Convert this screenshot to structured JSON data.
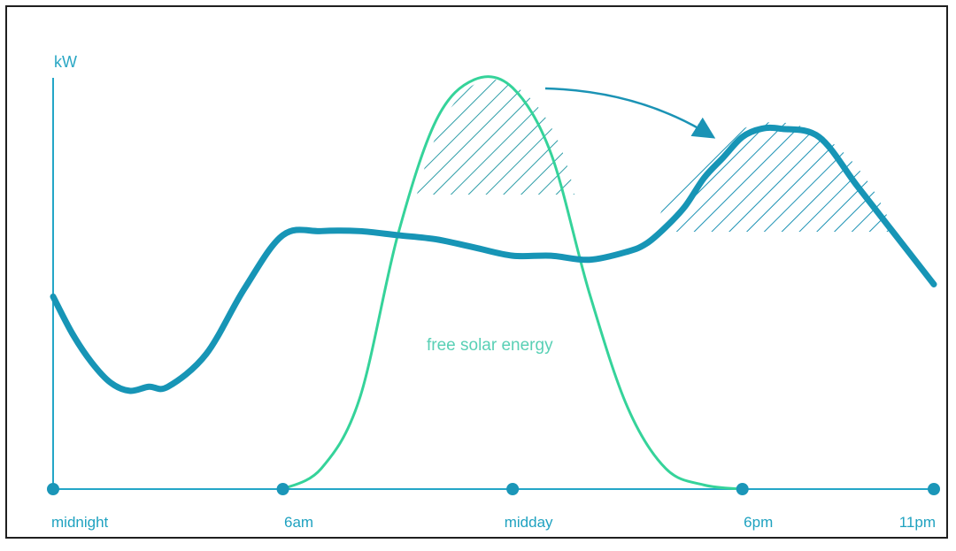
{
  "chart_data": {
    "type": "line",
    "ylabel": "kW",
    "categories": [
      "midnight",
      "6am",
      "midday",
      "6pm",
      "11pm"
    ],
    "annotations": [
      "free solar energy"
    ],
    "series": [
      {
        "color": "#1795b6",
        "x": [
          0,
          0.5,
          1,
          1.5,
          2,
          2.5,
          3,
          4,
          5,
          6,
          7,
          8,
          9,
          10,
          11,
          12,
          13,
          14,
          15,
          15.5,
          16,
          16.5,
          17,
          17.5,
          18,
          18.5,
          19,
          20,
          21,
          22,
          23
        ],
        "values": [
          0.47,
          0.38,
          0.31,
          0.26,
          0.24,
          0.25,
          0.25,
          0.33,
          0.49,
          0.62,
          0.63,
          0.63,
          0.62,
          0.61,
          0.59,
          0.57,
          0.57,
          0.56,
          0.58,
          0.6,
          0.64,
          0.69,
          0.76,
          0.81,
          0.86,
          0.88,
          0.88,
          0.86,
          0.74,
          0.62,
          0.5
        ]
      },
      {
        "color": "#35d39a",
        "x": [
          6,
          7,
          8,
          9,
          10,
          11,
          12,
          13,
          14,
          15,
          16,
          17,
          18
        ],
        "values": [
          0,
          0.05,
          0.22,
          0.62,
          0.9,
          1.0,
          0.98,
          0.82,
          0.48,
          0.2,
          0.05,
          0.01,
          0
        ]
      }
    ],
    "hatched_regions": [
      {
        "start": "10am",
        "end": "2pm"
      },
      {
        "start": "3:30pm",
        "end": "10pm"
      }
    ],
    "grid": false
  }
}
